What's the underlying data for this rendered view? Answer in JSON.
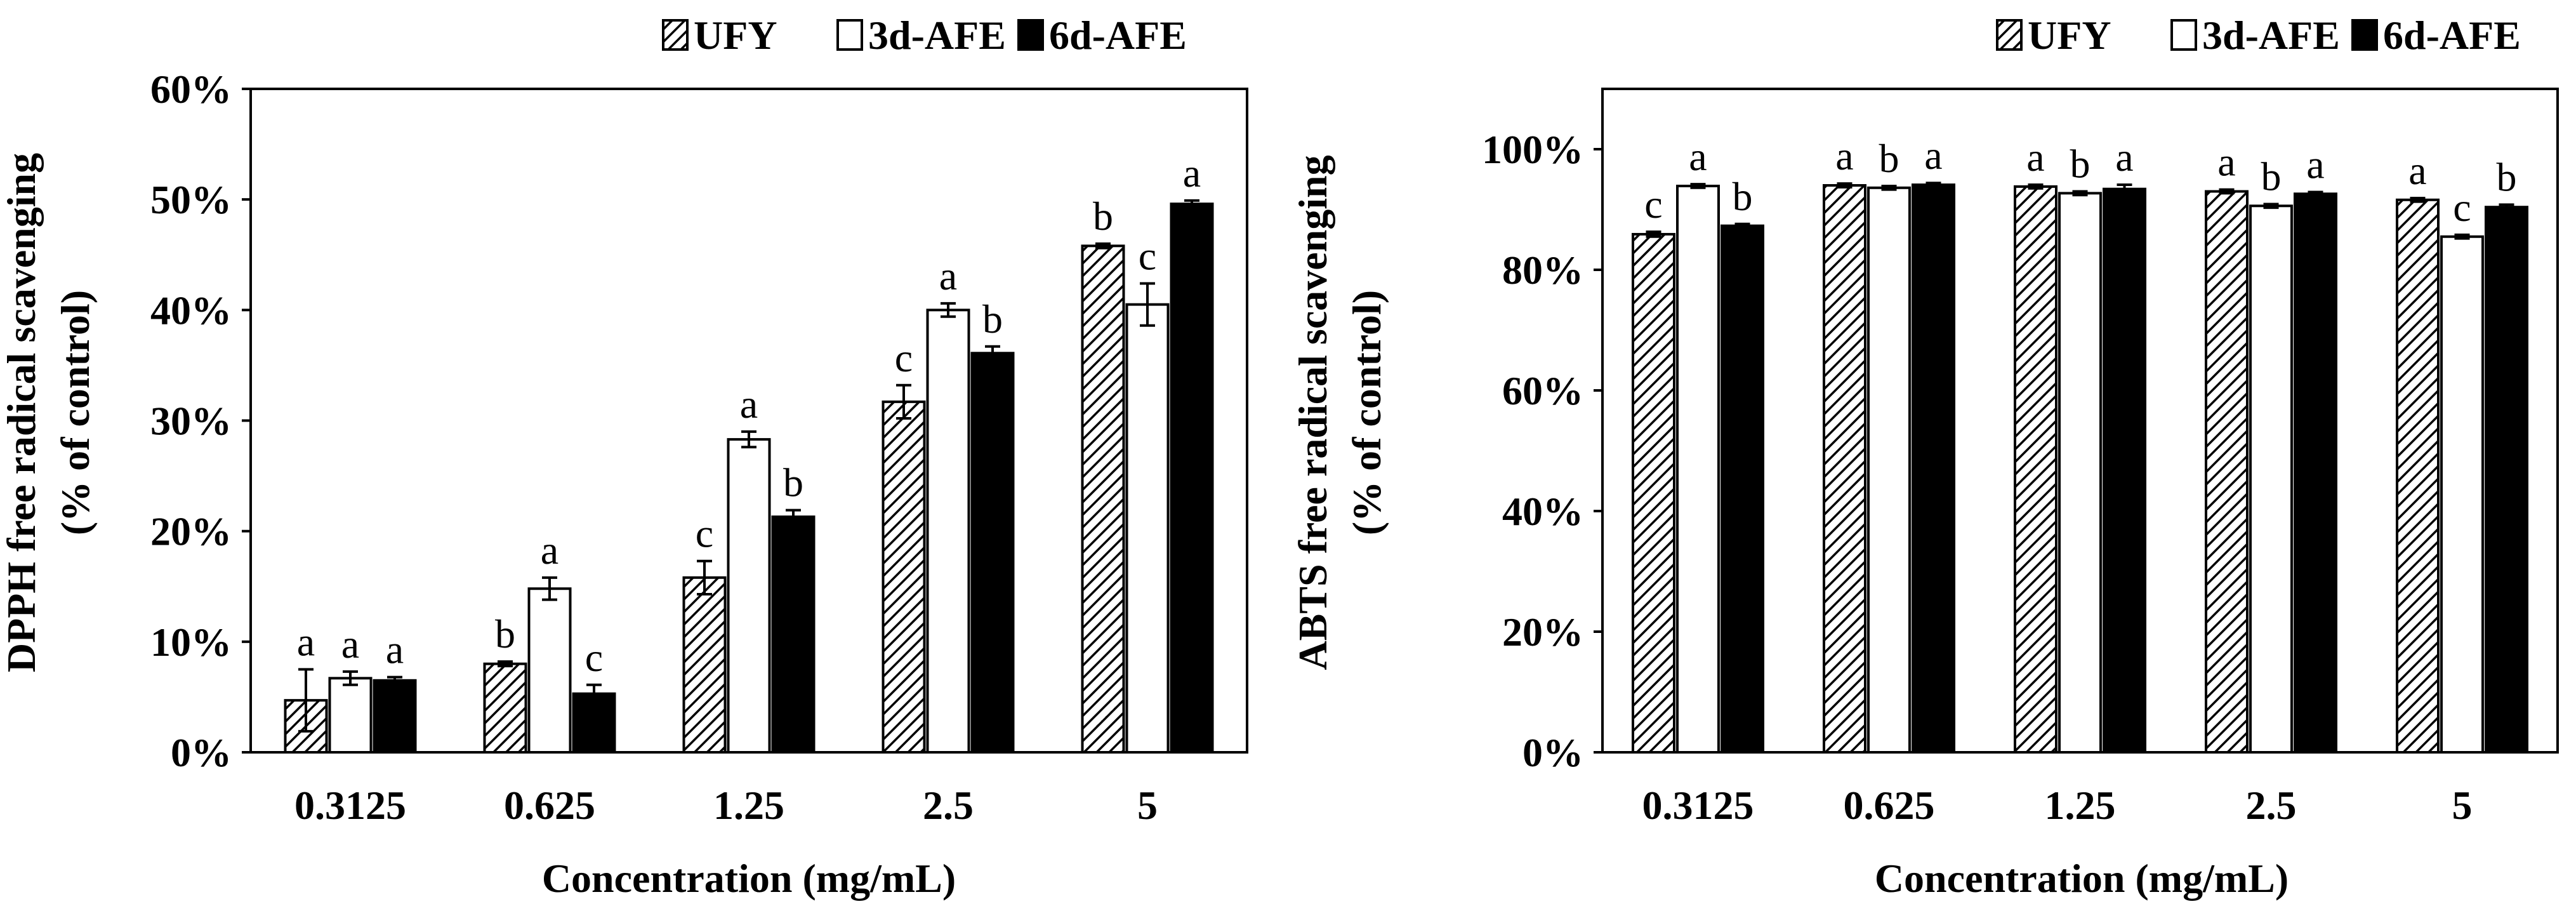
{
  "chart_data": [
    {
      "type": "bar",
      "categories": [
        "0.3125",
        "0.625",
        "1.25",
        "2.5",
        "5"
      ],
      "series": [
        {
          "name": "UFY",
          "values": [
            4.7,
            8.0,
            15.8,
            31.7,
            45.8
          ],
          "errors": [
            2.8,
            0.2,
            1.5,
            1.5,
            0.2
          ],
          "letters": [
            "a",
            "b",
            "c",
            "c",
            "b"
          ]
        },
        {
          "name": "3d-AFE",
          "values": [
            6.7,
            14.8,
            28.3,
            40.0,
            40.5
          ],
          "errors": [
            0.6,
            1.0,
            0.7,
            0.6,
            1.9
          ],
          "letters": [
            "a",
            "a",
            "a",
            "a",
            "c"
          ]
        },
        {
          "name": "6d-AFE",
          "values": [
            6.5,
            5.3,
            21.3,
            36.1,
            49.6
          ],
          "errors": [
            0.3,
            0.8,
            0.6,
            0.6,
            0.3
          ],
          "letters": [
            "a",
            "c",
            "b",
            "b",
            "a"
          ]
        }
      ],
      "xlabel": "Concentration (mg/mL)",
      "ylabel_line1": "DPPH free radical scavenging",
      "ylabel_line2": "(% of control)",
      "ylim": [
        0,
        60
      ],
      "yticks": [
        0,
        10,
        20,
        30,
        40,
        50,
        60
      ],
      "ytick_labels": [
        "0%",
        "10%",
        "20%",
        "30%",
        "40%",
        "50%",
        "60%"
      ],
      "legend_position": "top-right",
      "grid": false
    },
    {
      "type": "bar",
      "categories": [
        "0.3125",
        "0.625",
        "1.25",
        "2.5",
        "5"
      ],
      "series": [
        {
          "name": "UFY",
          "values": [
            85.9,
            94.0,
            93.8,
            93.0,
            91.6
          ],
          "errors": [
            0.4,
            0.3,
            0.3,
            0.3,
            0.3
          ],
          "letters": [
            "c",
            "a",
            "a",
            "a",
            "a"
          ]
        },
        {
          "name": "3d-AFE",
          "values": [
            93.9,
            93.6,
            92.7,
            90.6,
            85.5
          ],
          "errors": [
            0.3,
            0.3,
            0.3,
            0.3,
            0.3
          ],
          "letters": [
            "a",
            "b",
            "b",
            "b",
            "c"
          ]
        },
        {
          "name": "6d-AFE",
          "values": [
            87.3,
            94.1,
            93.4,
            92.6,
            90.4
          ],
          "errors": [
            0.3,
            0.3,
            0.7,
            0.3,
            0.4
          ],
          "letters": [
            "b",
            "a",
            "a",
            "a",
            "b"
          ]
        }
      ],
      "xlabel": "Concentration (mg/mL)",
      "ylabel_line1": "ABTS free radical scavenging",
      "ylabel_line2": "(% of control)",
      "ylim": [
        0,
        110
      ],
      "yticks": [
        0,
        20,
        40,
        60,
        80,
        100
      ],
      "ytick_labels": [
        "0%",
        "20%",
        "40%",
        "60%",
        "80%",
        "100%"
      ],
      "legend_position": "top-right",
      "grid": false
    }
  ],
  "colors": {
    "UFY": "hatched",
    "3d-AFE": "#ffffff",
    "6d-AFE": "#000000"
  }
}
